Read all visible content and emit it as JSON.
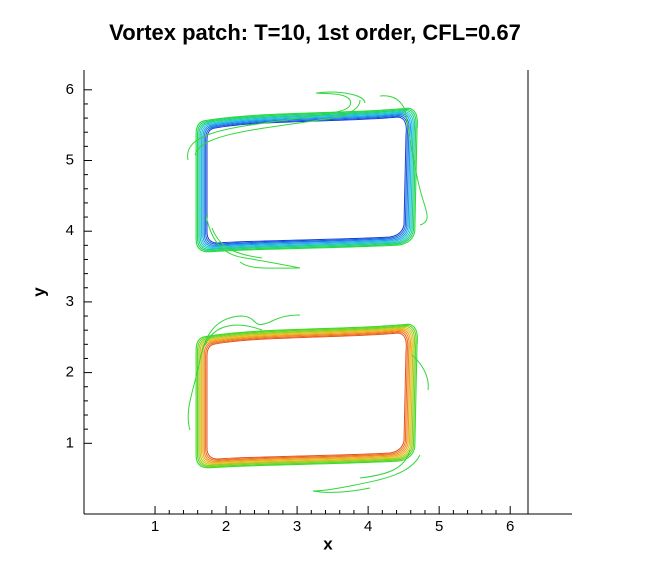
{
  "chart_data": {
    "type": "contour",
    "title": "Vortex patch: T=10, 1st order, CFL=0.67",
    "x_label": "x",
    "y_label": "y",
    "xlim": [
      0,
      6.87
    ],
    "ylim": [
      0,
      6.28
    ],
    "xticks": [
      1,
      2,
      3,
      4,
      5,
      6
    ],
    "yticks": [
      1,
      2,
      3,
      4,
      5,
      6
    ]
  }
}
